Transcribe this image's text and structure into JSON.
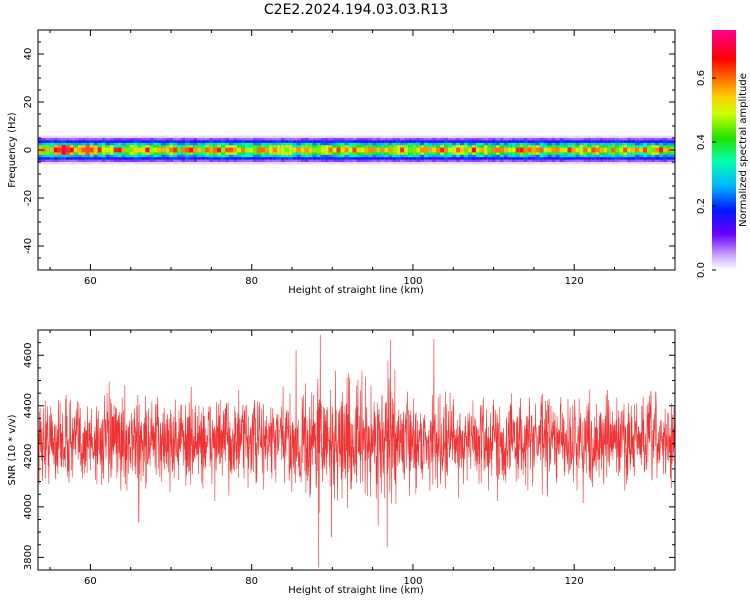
{
  "title": "C2E2.2024.194.03.03.R13",
  "chart_data": [
    {
      "type": "heatmap",
      "xlabel": "Height of straight line (km)",
      "ylabel": "Frequency (Hz)",
      "xlim": [
        53.5,
        132.5
      ],
      "ylim": [
        -50,
        50
      ],
      "x_ticks": [
        60,
        80,
        100,
        120
      ],
      "y_ticks": [
        40,
        20,
        0,
        -20,
        -40
      ],
      "band": {
        "description_values": {
          "x_start": 53.5,
          "x_end": 132.5,
          "half_width_hz": [
            1,
            2,
            3,
            4,
            5,
            6
          ],
          "amplitude": [
            0.55,
            0.42,
            0.28,
            0.18,
            0.08,
            0.02
          ]
        },
        "hotspots": [
          {
            "x": 56.5,
            "y": 0,
            "amplitude": 0.7
          },
          {
            "x": 59.5,
            "y": 0,
            "amplitude": 0.62
          },
          {
            "x": 88.2,
            "y": 0,
            "amplitude": 0.45
          },
          {
            "x": 97.5,
            "y": 0,
            "amplitude": 0.45
          },
          {
            "x": 110.5,
            "y": 0,
            "amplitude": 0.42
          }
        ]
      },
      "colorbar": {
        "label": "Normalized spectral amplitude",
        "range": [
          0,
          0.75
        ],
        "ticks": [
          "0.0",
          "0.2",
          "0.4",
          "0.6"
        ],
        "tick_values": [
          0.0,
          0.2,
          0.4,
          0.6
        ]
      }
    },
    {
      "type": "line",
      "xlabel": "Height of straight line (km)",
      "ylabel": "SNR (10 * v/v)",
      "xlim": [
        53.5,
        132.5
      ],
      "ylim": [
        3750,
        4700
      ],
      "x_ticks": [
        60,
        80,
        100,
        120
      ],
      "y_ticks": [
        4600,
        4400,
        4200,
        4000,
        3800
      ],
      "color": "#f03232",
      "series": [
        {
          "mean": 4260,
          "noise_amplitude": 150,
          "x_start": 53.5,
          "x_end": 132.5,
          "points": 2400,
          "spikes": [
            {
              "x": 88.3,
              "y": 3760
            },
            {
              "x": 88.5,
              "y": 4680
            },
            {
              "x": 96.8,
              "y": 3840
            },
            {
              "x": 97.2,
              "y": 4660
            },
            {
              "x": 66.0,
              "y": 3940
            },
            {
              "x": 85.5,
              "y": 4620
            },
            {
              "x": 102.6,
              "y": 4665
            },
            {
              "x": 89.9,
              "y": 3880
            }
          ]
        }
      ]
    }
  ]
}
